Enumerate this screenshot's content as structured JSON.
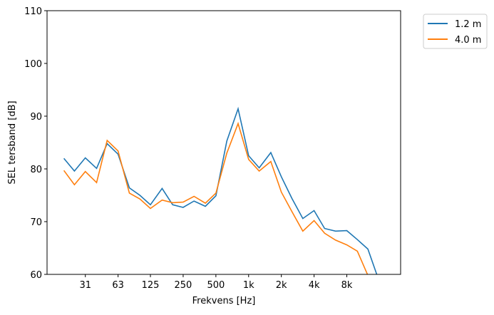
{
  "chart_data": {
    "type": "line",
    "xlabel": "Frekvens [Hz]",
    "ylabel": "SEL tersband [dB]",
    "x_scale": "log",
    "x": [
      20,
      25,
      31.5,
      40,
      50,
      63,
      80,
      100,
      125,
      160,
      200,
      250,
      315,
      400,
      500,
      630,
      800,
      1000,
      1250,
      1600,
      2000,
      2500,
      3150,
      4000,
      5000,
      6300,
      8000,
      10000,
      12500,
      16000
    ],
    "xticks": [
      {
        "value": 31.5,
        "label": "31"
      },
      {
        "value": 63,
        "label": "63"
      },
      {
        "value": 125,
        "label": "125"
      },
      {
        "value": 250,
        "label": "250"
      },
      {
        "value": 500,
        "label": "500"
      },
      {
        "value": 1000,
        "label": "1k"
      },
      {
        "value": 2000,
        "label": "2k"
      },
      {
        "value": 4000,
        "label": "4k"
      },
      {
        "value": 8000,
        "label": "8k"
      }
    ],
    "yticks": [
      60,
      70,
      80,
      90,
      100,
      110
    ],
    "ylim": [
      60,
      110
    ],
    "xlim": [
      14,
      25000
    ],
    "grid": false,
    "legend": "outside-top-right",
    "series": [
      {
        "name": "1.2 m",
        "color": "#1f77b4",
        "values": [
          82.0,
          79.6,
          82.1,
          80.1,
          84.8,
          82.8,
          76.4,
          75.0,
          73.2,
          76.3,
          73.2,
          72.7,
          73.9,
          72.9,
          74.9,
          85.3,
          91.4,
          82.5,
          80.2,
          83.1,
          78.5,
          74.4,
          70.6,
          72.1,
          68.7,
          68.2,
          68.3,
          66.6,
          64.8,
          58.5
        ]
      },
      {
        "name": "4.0 m",
        "color": "#ff7f0e",
        "values": [
          79.7,
          77.0,
          79.5,
          77.4,
          85.4,
          83.4,
          75.4,
          74.3,
          72.5,
          74.1,
          73.6,
          73.7,
          74.8,
          73.5,
          75.4,
          83.0,
          88.6,
          81.8,
          79.6,
          81.4,
          75.6,
          71.9,
          68.2,
          70.2,
          67.8,
          66.5,
          65.6,
          64.4,
          59.8,
          55.0
        ]
      }
    ]
  }
}
